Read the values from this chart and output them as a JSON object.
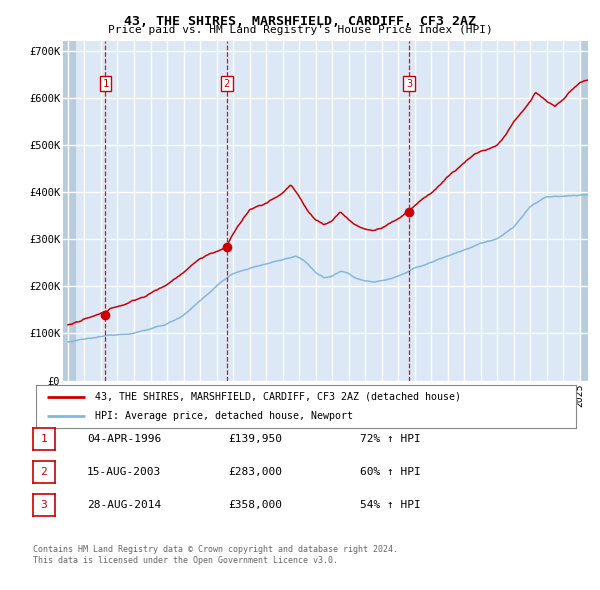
{
  "title": "43, THE SHIRES, MARSHFIELD, CARDIFF, CF3 2AZ",
  "subtitle": "Price paid vs. HM Land Registry's House Price Index (HPI)",
  "legend_line1": "43, THE SHIRES, MARSHFIELD, CARDIFF, CF3 2AZ (detached house)",
  "legend_line2": "HPI: Average price, detached house, Newport",
  "footer_line1": "Contains HM Land Registry data © Crown copyright and database right 2024.",
  "footer_line2": "This data is licensed under the Open Government Licence v3.0.",
  "table": [
    {
      "num": "1",
      "date": "04-APR-1996",
      "price": "£139,950",
      "change": "72% ↑ HPI"
    },
    {
      "num": "2",
      "date": "15-AUG-2003",
      "price": "£283,000",
      "change": "60% ↑ HPI"
    },
    {
      "num": "3",
      "date": "28-AUG-2014",
      "price": "£358,000",
      "change": "54% ↑ HPI"
    }
  ],
  "sale_dates": [
    1996.27,
    2003.62,
    2014.66
  ],
  "sale_prices": [
    139950,
    283000,
    358000
  ],
  "ylim": [
    0,
    720000
  ],
  "xlim_start": 1993.7,
  "xlim_end": 2025.5,
  "plot_bg": "#dce8f5",
  "hatch_color": "#b8ccde",
  "red_line_color": "#cc0000",
  "blue_line_color": "#85b8d8",
  "marker_color": "#cc0000",
  "grid_color": "#ffffff",
  "yticks": [
    0,
    100000,
    200000,
    300000,
    400000,
    500000,
    600000,
    700000
  ],
  "ytick_labels": [
    "£0",
    "£100K",
    "£200K",
    "£300K",
    "£400K",
    "£500K",
    "£600K",
    "£700K"
  ],
  "xticks": [
    1994,
    1995,
    1996,
    1997,
    1998,
    1999,
    2000,
    2001,
    2002,
    2003,
    2004,
    2005,
    2006,
    2007,
    2008,
    2009,
    2010,
    2011,
    2012,
    2013,
    2014,
    2015,
    2016,
    2017,
    2018,
    2019,
    2020,
    2021,
    2022,
    2023,
    2024,
    2025
  ],
  "hatch_left_end": 1994.5,
  "hatch_right_start": 2025.0
}
